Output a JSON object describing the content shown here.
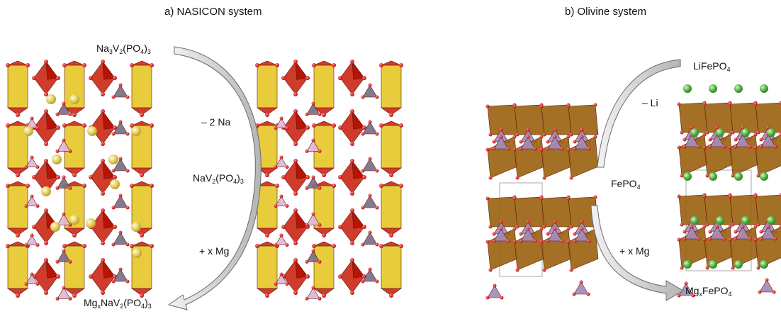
{
  "panels": {
    "nasicon": {
      "title": "a) NASICON system",
      "start": {
        "base": "Na",
        "sub1": "3",
        "mid": "V",
        "sub2": "2",
        "end": "(PO",
        "sub3": "4",
        "close": ")",
        "sub4": "3"
      },
      "step1": "– 2 Na",
      "intermediate": {
        "base": "NaV",
        "sub1": "2",
        "mid": "(PO",
        "sub2": "4",
        "close": ")",
        "sub3": "3"
      },
      "step2": "+ x Mg",
      "final": {
        "base": "Mg",
        "sub1": "x",
        "mid": "NaV",
        "sub2": "2",
        "end": "(PO",
        "sub3": "4",
        "close": ")",
        "sub4": "3"
      }
    },
    "olivine": {
      "title": "b) Olivine system",
      "start": {
        "base": "LiFePO",
        "sub1": "4"
      },
      "step1": "– Li",
      "intermediate": {
        "base": "FePO",
        "sub1": "4"
      },
      "step2": "+ x Mg",
      "final": {
        "base": "Mg",
        "sub1": "x",
        "mid": "FePO",
        "sub2": "4"
      }
    }
  },
  "colors": {
    "vanadium_octahedra": "#cc2a1a",
    "phosphate_nasicon": "#7a6f85",
    "phosphate_light": "#e2b6d8",
    "yellow_columns": "#e6c82a",
    "sodium_atoms": "#e8d46a",
    "iron_octahedra": "#9c6414",
    "phosphate_olivine": "#a58ab7",
    "lithium_atoms": "#4cae3e",
    "oxygen": "#d01010",
    "arrow": "#c8c8c8"
  }
}
